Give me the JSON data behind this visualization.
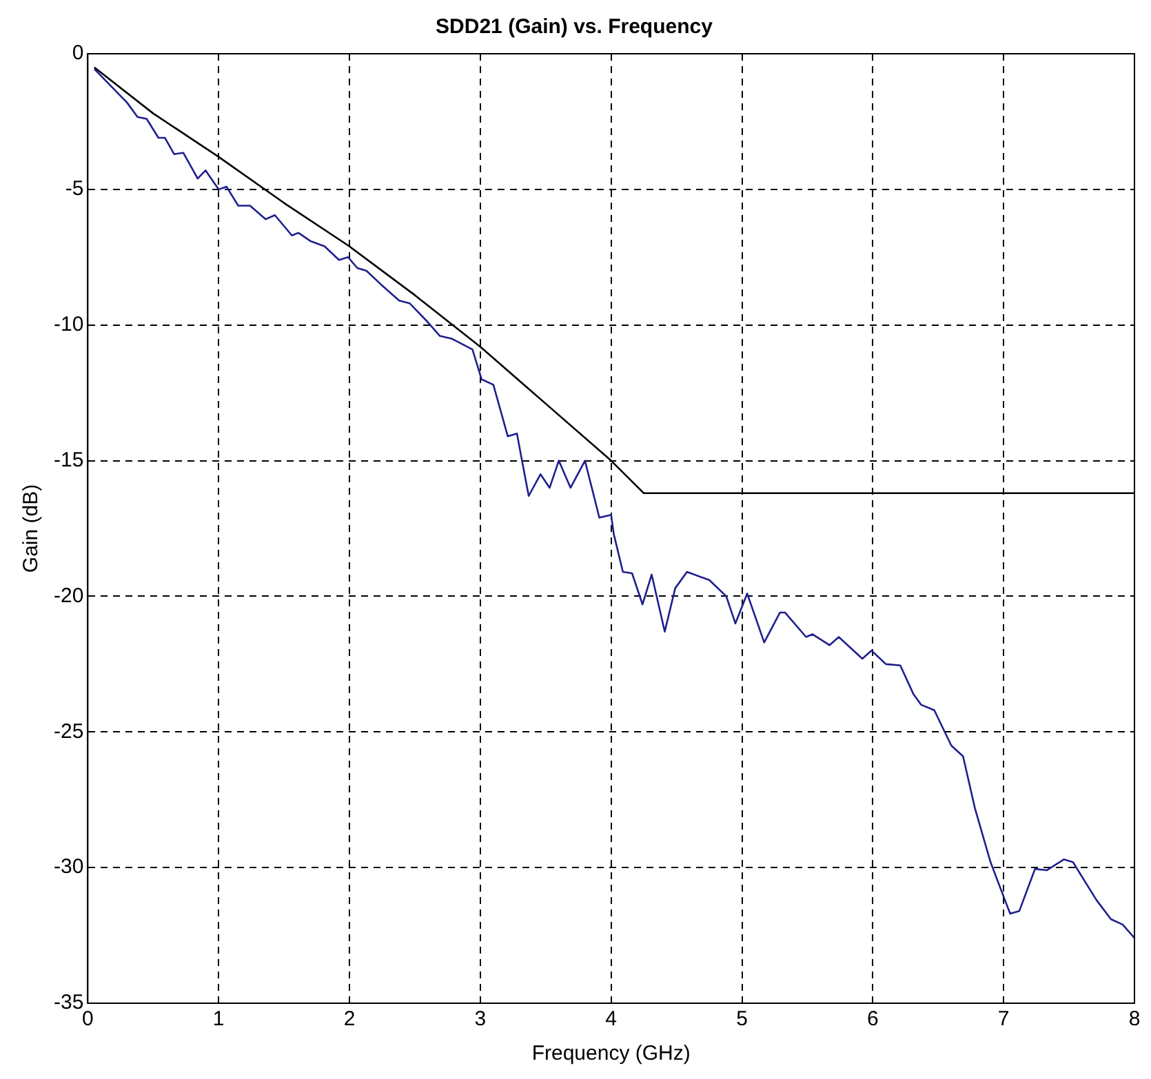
{
  "chart_data": {
    "type": "line",
    "title": "SDD21 (Gain) vs. Frequency",
    "xlabel": "Frequency (GHz)",
    "ylabel": "Gain (dB)",
    "xlim": [
      0,
      8
    ],
    "xticks": [
      0,
      1,
      2,
      3,
      4,
      5,
      6,
      7,
      8
    ],
    "ylim": [
      -35,
      0
    ],
    "yticks": [
      -35,
      -30,
      -25,
      -20,
      -15,
      -10,
      -5,
      0
    ],
    "grid": true,
    "series": [
      {
        "color": "#1f1f8f",
        "x": [
          0.05,
          0.3,
          0.38,
          0.45,
          0.54,
          0.59,
          0.66,
          0.73,
          0.84,
          0.9,
          1.0,
          1.06,
          1.15,
          1.24,
          1.36,
          1.43,
          1.56,
          1.61,
          1.7,
          1.81,
          1.92,
          1.99,
          2.06,
          2.13,
          2.24,
          2.38,
          2.46,
          2.6,
          2.69,
          2.78,
          2.94,
          3.01,
          3.1,
          3.21,
          3.28,
          3.37,
          3.46,
          3.53,
          3.6,
          3.69,
          3.8,
          3.91,
          4.0,
          4.02,
          4.09,
          4.16,
          4.24,
          4.31,
          4.41,
          4.49,
          4.58,
          4.75,
          4.88,
          4.95,
          5.04,
          5.17,
          5.29,
          5.33,
          5.49,
          5.54,
          5.67,
          5.74,
          5.92,
          5.99,
          6.1,
          6.21,
          6.31,
          6.37,
          6.47,
          6.6,
          6.69,
          6.78,
          6.9,
          7.01,
          7.05,
          7.12,
          7.24,
          7.33,
          7.46,
          7.53,
          7.71,
          7.82,
          7.91,
          8.0
        ],
        "values": [
          -0.56,
          -1.8,
          -2.33,
          -2.4,
          -3.1,
          -3.1,
          -3.7,
          -3.65,
          -4.6,
          -4.3,
          -5.0,
          -4.9,
          -5.6,
          -5.6,
          -6.1,
          -5.95,
          -6.7,
          -6.6,
          -6.9,
          -7.1,
          -7.6,
          -7.5,
          -7.9,
          -8.0,
          -8.5,
          -9.1,
          -9.2,
          -9.9,
          -10.4,
          -10.5,
          -10.9,
          -12.0,
          -12.2,
          -14.1,
          -14.0,
          -16.3,
          -15.5,
          -16.0,
          -15.0,
          -16.0,
          -15.0,
          -17.1,
          -17.0,
          -17.7,
          -19.1,
          -19.15,
          -20.3,
          -19.2,
          -21.3,
          -19.7,
          -19.1,
          -19.4,
          -20.0,
          -21.0,
          -19.9,
          -21.7,
          -20.6,
          -20.6,
          -21.5,
          -21.4,
          -21.8,
          -21.5,
          -22.3,
          -22.0,
          -22.5,
          -22.55,
          -23.6,
          -24.0,
          -24.2,
          -25.5,
          -25.9,
          -27.8,
          -29.8,
          -31.2,
          -31.7,
          -31.6,
          -30.05,
          -30.1,
          -29.7,
          -29.8,
          -31.2,
          -31.9,
          -32.1,
          -32.6
        ]
      },
      {
        "color": "#000000",
        "x": [
          0.05,
          0.5,
          1.0,
          1.5,
          2.0,
          2.5,
          3.0,
          3.5,
          4.0,
          4.25,
          8.0
        ],
        "values": [
          -0.5,
          -2.2,
          -3.8,
          -5.5,
          -7.1,
          -8.9,
          -10.8,
          -12.9,
          -15.0,
          -16.2,
          -16.2
        ]
      }
    ]
  }
}
